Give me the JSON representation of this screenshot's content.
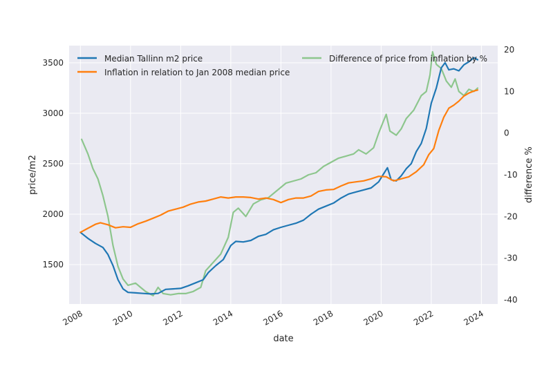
{
  "chart_data": {
    "type": "line",
    "xlabel": "date",
    "ylabel_left": "price/m2",
    "ylabel_right": "difference %",
    "x_range": [
      2007.55,
      2024.65
    ],
    "ylim_left": [
      1110,
      3670
    ],
    "ylim_right": [
      -41,
      21
    ],
    "x_ticks": [
      "2008",
      "2010",
      "2012",
      "2014",
      "2016",
      "2018",
      "2020",
      "2022",
      "2024"
    ],
    "y_ticks_left": [
      1500,
      2000,
      2500,
      3000,
      3500
    ],
    "y_ticks_right": [
      -40,
      -30,
      -20,
      -10,
      0,
      10,
      20
    ],
    "grid": true,
    "legend_placement": "top",
    "series": [
      {
        "name": "Median Tallinn m2 price",
        "axis": "left",
        "color": "#1f77b4",
        "points": [
          [
            2008.0,
            1820
          ],
          [
            2008.3,
            1760
          ],
          [
            2008.6,
            1710
          ],
          [
            2008.9,
            1670
          ],
          [
            2009.1,
            1600
          ],
          [
            2009.3,
            1490
          ],
          [
            2009.5,
            1350
          ],
          [
            2009.7,
            1260
          ],
          [
            2009.9,
            1225
          ],
          [
            2010.2,
            1220
          ],
          [
            2010.5,
            1215
          ],
          [
            2010.8,
            1210
          ],
          [
            2011.1,
            1215
          ],
          [
            2011.4,
            1255
          ],
          [
            2011.7,
            1260
          ],
          [
            2012.0,
            1265
          ],
          [
            2012.3,
            1290
          ],
          [
            2012.6,
            1320
          ],
          [
            2012.9,
            1350
          ],
          [
            2013.1,
            1420
          ],
          [
            2013.4,
            1490
          ],
          [
            2013.7,
            1550
          ],
          [
            2014.0,
            1690
          ],
          [
            2014.2,
            1730
          ],
          [
            2014.5,
            1725
          ],
          [
            2014.8,
            1740
          ],
          [
            2015.1,
            1780
          ],
          [
            2015.4,
            1800
          ],
          [
            2015.7,
            1845
          ],
          [
            2016.0,
            1870
          ],
          [
            2016.3,
            1890
          ],
          [
            2016.6,
            1910
          ],
          [
            2016.9,
            1940
          ],
          [
            2017.2,
            2000
          ],
          [
            2017.5,
            2050
          ],
          [
            2017.8,
            2080
          ],
          [
            2018.1,
            2110
          ],
          [
            2018.4,
            2160
          ],
          [
            2018.7,
            2200
          ],
          [
            2019.0,
            2220
          ],
          [
            2019.3,
            2240
          ],
          [
            2019.6,
            2260
          ],
          [
            2019.9,
            2320
          ],
          [
            2020.1,
            2400
          ],
          [
            2020.25,
            2460
          ],
          [
            2020.4,
            2340
          ],
          [
            2020.6,
            2330
          ],
          [
            2020.8,
            2380
          ],
          [
            2021.0,
            2450
          ],
          [
            2021.2,
            2500
          ],
          [
            2021.4,
            2620
          ],
          [
            2021.6,
            2700
          ],
          [
            2021.8,
            2850
          ],
          [
            2022.0,
            3100
          ],
          [
            2022.2,
            3250
          ],
          [
            2022.4,
            3450
          ],
          [
            2022.55,
            3500
          ],
          [
            2022.7,
            3430
          ],
          [
            2022.9,
            3440
          ],
          [
            2023.1,
            3420
          ],
          [
            2023.3,
            3480
          ],
          [
            2023.5,
            3510
          ],
          [
            2023.7,
            3550
          ],
          [
            2023.85,
            3530
          ]
        ]
      },
      {
        "name": "Inflation in relation to Jan 2008 median price",
        "axis": "left",
        "color": "#ff7f0e",
        "points": [
          [
            2008.0,
            1820
          ],
          [
            2008.3,
            1860
          ],
          [
            2008.6,
            1900
          ],
          [
            2008.8,
            1915
          ],
          [
            2009.1,
            1895
          ],
          [
            2009.4,
            1865
          ],
          [
            2009.7,
            1875
          ],
          [
            2010.0,
            1870
          ],
          [
            2010.3,
            1905
          ],
          [
            2010.6,
            1930
          ],
          [
            2010.9,
            1960
          ],
          [
            2011.2,
            1990
          ],
          [
            2011.5,
            2030
          ],
          [
            2011.8,
            2050
          ],
          [
            2012.1,
            2070
          ],
          [
            2012.4,
            2100
          ],
          [
            2012.7,
            2120
          ],
          [
            2013.0,
            2130
          ],
          [
            2013.3,
            2150
          ],
          [
            2013.6,
            2170
          ],
          [
            2013.9,
            2160
          ],
          [
            2014.2,
            2170
          ],
          [
            2014.5,
            2170
          ],
          [
            2014.8,
            2165
          ],
          [
            2015.1,
            2150
          ],
          [
            2015.4,
            2160
          ],
          [
            2015.7,
            2145
          ],
          [
            2016.0,
            2115
          ],
          [
            2016.3,
            2145
          ],
          [
            2016.6,
            2160
          ],
          [
            2016.9,
            2160
          ],
          [
            2017.2,
            2180
          ],
          [
            2017.5,
            2225
          ],
          [
            2017.8,
            2240
          ],
          [
            2018.1,
            2245
          ],
          [
            2018.4,
            2280
          ],
          [
            2018.7,
            2310
          ],
          [
            2019.0,
            2320
          ],
          [
            2019.3,
            2330
          ],
          [
            2019.6,
            2350
          ],
          [
            2019.9,
            2375
          ],
          [
            2020.2,
            2370
          ],
          [
            2020.5,
            2330
          ],
          [
            2020.8,
            2350
          ],
          [
            2021.1,
            2370
          ],
          [
            2021.4,
            2420
          ],
          [
            2021.7,
            2490
          ],
          [
            2021.9,
            2590
          ],
          [
            2022.1,
            2650
          ],
          [
            2022.3,
            2830
          ],
          [
            2022.5,
            2960
          ],
          [
            2022.7,
            3050
          ],
          [
            2022.9,
            3080
          ],
          [
            2023.1,
            3120
          ],
          [
            2023.3,
            3170
          ],
          [
            2023.5,
            3200
          ],
          [
            2023.7,
            3220
          ],
          [
            2023.85,
            3230
          ]
        ]
      },
      {
        "name": "Difference of price from inflation by %",
        "axis": "right",
        "color": "#8dc68d",
        "points": [
          [
            2008.05,
            -1.5
          ],
          [
            2008.3,
            -5
          ],
          [
            2008.5,
            -8.5
          ],
          [
            2008.7,
            -11
          ],
          [
            2008.9,
            -15
          ],
          [
            2009.1,
            -20
          ],
          [
            2009.3,
            -27
          ],
          [
            2009.5,
            -32
          ],
          [
            2009.7,
            -35
          ],
          [
            2009.9,
            -36.5
          ],
          [
            2010.2,
            -36
          ],
          [
            2010.4,
            -37
          ],
          [
            2010.6,
            -38
          ],
          [
            2010.9,
            -39
          ],
          [
            2011.1,
            -37
          ],
          [
            2011.3,
            -38.5
          ],
          [
            2011.6,
            -38.8
          ],
          [
            2011.9,
            -38.5
          ],
          [
            2012.2,
            -38.5
          ],
          [
            2012.5,
            -38
          ],
          [
            2012.8,
            -37
          ],
          [
            2013.0,
            -33
          ],
          [
            2013.3,
            -31
          ],
          [
            2013.6,
            -29
          ],
          [
            2013.9,
            -25
          ],
          [
            2014.1,
            -19
          ],
          [
            2014.3,
            -18
          ],
          [
            2014.6,
            -20
          ],
          [
            2014.9,
            -17
          ],
          [
            2015.2,
            -16
          ],
          [
            2015.5,
            -15.5
          ],
          [
            2015.8,
            -14
          ],
          [
            2016.0,
            -13
          ],
          [
            2016.2,
            -12
          ],
          [
            2016.5,
            -11.5
          ],
          [
            2016.8,
            -11
          ],
          [
            2017.1,
            -10
          ],
          [
            2017.4,
            -9.5
          ],
          [
            2017.7,
            -8
          ],
          [
            2018.0,
            -7
          ],
          [
            2018.3,
            -6
          ],
          [
            2018.6,
            -5.5
          ],
          [
            2018.9,
            -5
          ],
          [
            2019.1,
            -4
          ],
          [
            2019.4,
            -5
          ],
          [
            2019.7,
            -3.5
          ],
          [
            2019.9,
            0
          ],
          [
            2020.1,
            3
          ],
          [
            2020.2,
            4.5
          ],
          [
            2020.35,
            0.5
          ],
          [
            2020.6,
            -0.5
          ],
          [
            2020.8,
            1
          ],
          [
            2021.0,
            3.5
          ],
          [
            2021.3,
            5.5
          ],
          [
            2021.6,
            9
          ],
          [
            2021.8,
            10
          ],
          [
            2021.95,
            14
          ],
          [
            2022.05,
            19.5
          ],
          [
            2022.2,
            16.5
          ],
          [
            2022.4,
            15.5
          ],
          [
            2022.6,
            12.5
          ],
          [
            2022.8,
            11
          ],
          [
            2022.95,
            13
          ],
          [
            2023.1,
            10
          ],
          [
            2023.3,
            9
          ],
          [
            2023.5,
            10.5
          ],
          [
            2023.7,
            10
          ],
          [
            2023.85,
            10.8
          ]
        ]
      }
    ]
  }
}
